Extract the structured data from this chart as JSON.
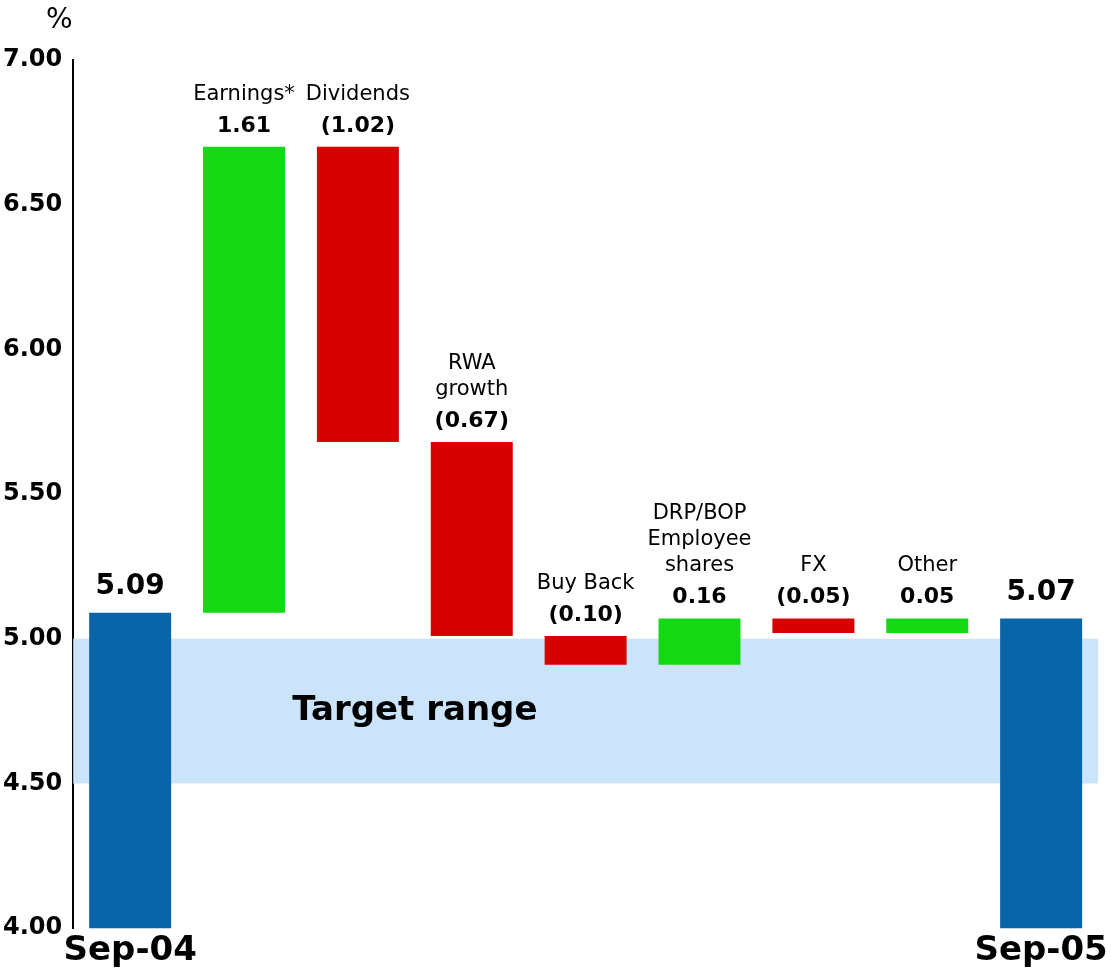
{
  "chart_data": {
    "type": "bar",
    "ylabel": "%",
    "categories": [
      "Sep-04",
      "Earnings*",
      "Dividends",
      "RWA growth",
      "Buy Back",
      "DRP/BOP Employee shares",
      "FX",
      "Other",
      "Sep-05"
    ],
    "values": [
      5.09,
      1.61,
      -1.02,
      -0.67,
      -0.1,
      0.16,
      -0.05,
      0.05,
      5.07
    ],
    "base": [
      null,
      5.09,
      6.7,
      5.68,
      5.01,
      4.91,
      5.07,
      5.02,
      null
    ],
    "value_labels": [
      "5.09",
      "1.61",
      "(1.02)",
      "(0.67)",
      "(0.10)",
      "0.16",
      "(0.05)",
      "0.05",
      "5.07"
    ],
    "colors": [
      "#0a64a8",
      "#14d814",
      "#d80000",
      "#d80000",
      "#d80000",
      "#14d814",
      "#d80000",
      "#14d814",
      "#0a64a8"
    ],
    "ylim": [
      4,
      7
    ],
    "yticks": [
      {
        "value": 4,
        "label": "4.00"
      },
      {
        "value": 4.5,
        "label": "4.50"
      },
      {
        "value": 5,
        "label": "5.00"
      },
      {
        "value": 5.5,
        "label": "5.50"
      },
      {
        "value": 6,
        "label": "6.00"
      },
      {
        "value": 6.5,
        "label": "6.50"
      },
      {
        "value": 7,
        "label": "7.00"
      }
    ],
    "bands": [
      {
        "axis": "y",
        "from": 4.5,
        "to": 5.0,
        "label": "Target range",
        "color": "#cce4fa"
      }
    ],
    "grid": false,
    "legend": false
  }
}
